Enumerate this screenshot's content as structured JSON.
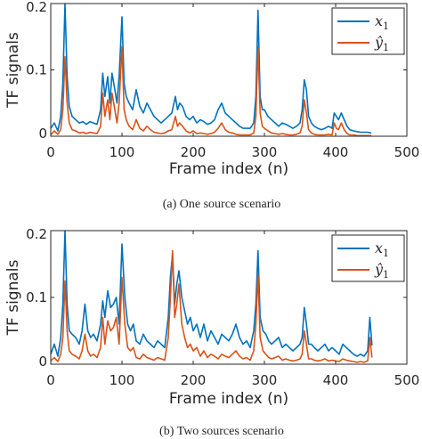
{
  "chart_data": [
    {
      "type": "line",
      "caption": "(a) One source scenario",
      "xlabel": "Frame index (n)",
      "ylabel": "TF signals",
      "xlim": [
        0,
        500
      ],
      "ylim": [
        0,
        0.2
      ],
      "xticks": [
        "0",
        "100",
        "200",
        "300",
        "400",
        "500"
      ],
      "yticks": [
        "0",
        "0.1",
        "0.2"
      ],
      "grid": false,
      "legend_position": "top-right",
      "series": [
        {
          "name": "x1",
          "legend_base": "x",
          "legend_sub": "1",
          "color": "#0072BD",
          "x": [
            0,
            5,
            10,
            14,
            17,
            20,
            23,
            26,
            30,
            35,
            40,
            45,
            50,
            55,
            60,
            65,
            70,
            73,
            76,
            80,
            83,
            86,
            90,
            93,
            96,
            100,
            103,
            106,
            110,
            115,
            120,
            125,
            130,
            135,
            140,
            145,
            150,
            155,
            160,
            165,
            170,
            175,
            178,
            181,
            185,
            190,
            195,
            200,
            205,
            210,
            215,
            220,
            225,
            230,
            235,
            240,
            245,
            250,
            255,
            260,
            265,
            270,
            275,
            280,
            285,
            288,
            291,
            294,
            297,
            300,
            305,
            310,
            315,
            320,
            325,
            330,
            335,
            340,
            345,
            350,
            353,
            356,
            359,
            362,
            366,
            370,
            375,
            380,
            385,
            390,
            395,
            398,
            401,
            404,
            408,
            412,
            416,
            420,
            425,
            430,
            435,
            440,
            445,
            450
          ],
          "y": [
            0.012,
            0.02,
            0.008,
            0.03,
            0.08,
            0.2,
            0.09,
            0.045,
            0.03,
            0.025,
            0.02,
            0.022,
            0.018,
            0.022,
            0.02,
            0.018,
            0.04,
            0.095,
            0.06,
            0.09,
            0.05,
            0.095,
            0.07,
            0.05,
            0.09,
            0.18,
            0.08,
            0.06,
            0.05,
            0.04,
            0.07,
            0.045,
            0.035,
            0.05,
            0.04,
            0.03,
            0.025,
            0.02,
            0.025,
            0.03,
            0.035,
            0.06,
            0.04,
            0.05,
            0.045,
            0.03,
            0.025,
            0.03,
            0.02,
            0.025,
            0.022,
            0.018,
            0.02,
            0.025,
            0.04,
            0.05,
            0.035,
            0.03,
            0.025,
            0.02,
            0.015,
            0.012,
            0.012,
            0.012,
            0.02,
            0.06,
            0.19,
            0.06,
            0.04,
            0.04,
            0.03,
            0.025,
            0.02,
            0.015,
            0.02,
            0.018,
            0.015,
            0.012,
            0.015,
            0.02,
            0.04,
            0.085,
            0.07,
            0.03,
            0.02,
            0.015,
            0.012,
            0.01,
            0.012,
            0.015,
            0.012,
            0.035,
            0.03,
            0.025,
            0.035,
            0.025,
            0.015,
            0.01,
            0.008,
            0.007,
            0.006,
            0.006,
            0.006,
            0.005
          ]
        },
        {
          "name": "ŷ1",
          "legend_base": "ŷ",
          "legend_sub": "1",
          "color": "#D95319",
          "x": [
            0,
            5,
            10,
            14,
            17,
            20,
            23,
            26,
            30,
            35,
            40,
            45,
            50,
            55,
            60,
            65,
            70,
            73,
            76,
            80,
            83,
            86,
            90,
            93,
            96,
            100,
            103,
            106,
            110,
            115,
            120,
            125,
            130,
            135,
            140,
            145,
            150,
            155,
            160,
            165,
            170,
            175,
            178,
            181,
            185,
            190,
            195,
            200,
            205,
            210,
            215,
            220,
            225,
            230,
            235,
            240,
            245,
            250,
            255,
            260,
            265,
            270,
            275,
            280,
            285,
            288,
            291,
            294,
            297,
            300,
            305,
            310,
            315,
            320,
            325,
            330,
            335,
            340,
            345,
            350,
            353,
            356,
            359,
            362,
            366,
            370,
            375,
            380,
            385,
            390,
            395,
            398,
            401,
            404,
            408,
            412,
            416,
            420,
            425,
            430,
            435,
            440,
            445,
            450
          ],
          "y": [
            0.002,
            0.008,
            0.003,
            0.01,
            0.04,
            0.12,
            0.05,
            0.02,
            0.01,
            0.008,
            0.005,
            0.006,
            0.004,
            0.006,
            0.005,
            0.004,
            0.015,
            0.065,
            0.03,
            0.055,
            0.025,
            0.065,
            0.04,
            0.02,
            0.05,
            0.135,
            0.04,
            0.025,
            0.015,
            0.01,
            0.025,
            0.012,
            0.008,
            0.015,
            0.01,
            0.006,
            0.005,
            0.004,
            0.005,
            0.008,
            0.01,
            0.03,
            0.015,
            0.02,
            0.015,
            0.008,
            0.005,
            0.008,
            0.004,
            0.005,
            0.004,
            0.003,
            0.004,
            0.006,
            0.012,
            0.02,
            0.01,
            0.006,
            0.005,
            0.003,
            0.002,
            0.002,
            0.002,
            0.002,
            0.005,
            0.03,
            0.135,
            0.035,
            0.015,
            0.012,
            0.008,
            0.005,
            0.004,
            0.003,
            0.004,
            0.003,
            0.002,
            0.002,
            0.003,
            0.005,
            0.015,
            0.055,
            0.035,
            0.01,
            0.005,
            0.003,
            0.002,
            0.002,
            0.002,
            0.003,
            0.002,
            0.02,
            0.012,
            0.01,
            0.02,
            0.01,
            0.004,
            0.002,
            0.002,
            0.001,
            0.001,
            0.001,
            0.001,
            0.001
          ]
        }
      ]
    },
    {
      "type": "line",
      "caption": "(b) Two sources scenario",
      "xlabel": "Frame index (n)",
      "ylabel": "TF signals",
      "xlim": [
        0,
        500
      ],
      "ylim": [
        0,
        0.2
      ],
      "xticks": [
        "0",
        "100",
        "200",
        "300",
        "400",
        "500"
      ],
      "yticks": [
        "0",
        "0.1",
        "0.2"
      ],
      "grid": false,
      "legend_position": "top-right",
      "series": [
        {
          "name": "x1",
          "legend_base": "x",
          "legend_sub": "1",
          "color": "#0072BD",
          "x": [
            0,
            5,
            10,
            14,
            17,
            20,
            23,
            26,
            30,
            35,
            40,
            44,
            48,
            52,
            56,
            60,
            65,
            70,
            73,
            76,
            80,
            84,
            88,
            92,
            96,
            100,
            104,
            108,
            112,
            116,
            120,
            125,
            130,
            135,
            140,
            145,
            150,
            155,
            160,
            165,
            168,
            171,
            174,
            177,
            180,
            184,
            188,
            192,
            196,
            200,
            205,
            210,
            215,
            220,
            225,
            230,
            235,
            240,
            245,
            250,
            255,
            260,
            265,
            270,
            275,
            280,
            285,
            288,
            291,
            294,
            298,
            302,
            306,
            310,
            315,
            320,
            325,
            330,
            335,
            340,
            345,
            350,
            353,
            356,
            359,
            362,
            366,
            370,
            375,
            380,
            385,
            390,
            395,
            400,
            405,
            410,
            415,
            420,
            425,
            430,
            435,
            440,
            445,
            448,
            451
          ],
          "y": [
            0.015,
            0.03,
            0.012,
            0.04,
            0.09,
            0.2,
            0.09,
            0.05,
            0.045,
            0.04,
            0.03,
            0.05,
            0.09,
            0.05,
            0.04,
            0.045,
            0.035,
            0.06,
            0.095,
            0.07,
            0.11,
            0.085,
            0.09,
            0.1,
            0.06,
            0.18,
            0.1,
            0.06,
            0.05,
            0.06,
            0.035,
            0.03,
            0.045,
            0.035,
            0.03,
            0.025,
            0.035,
            0.03,
            0.025,
            0.07,
            0.13,
            0.165,
            0.09,
            0.12,
            0.14,
            0.1,
            0.08,
            0.06,
            0.07,
            0.05,
            0.06,
            0.04,
            0.06,
            0.035,
            0.05,
            0.04,
            0.03,
            0.045,
            0.04,
            0.035,
            0.045,
            0.06,
            0.04,
            0.03,
            0.035,
            0.025,
            0.05,
            0.09,
            0.17,
            0.07,
            0.05,
            0.045,
            0.035,
            0.03,
            0.035,
            0.04,
            0.025,
            0.03,
            0.025,
            0.02,
            0.025,
            0.03,
            0.04,
            0.085,
            0.06,
            0.03,
            0.03,
            0.025,
            0.02,
            0.025,
            0.03,
            0.02,
            0.025,
            0.02,
            0.015,
            0.03,
            0.025,
            0.02,
            0.015,
            0.012,
            0.015,
            0.012,
            0.02,
            0.07,
            0.028
          ]
        },
        {
          "name": "ŷ1",
          "legend_base": "ŷ",
          "legend_sub": "1",
          "color": "#D95319",
          "x": [
            0,
            5,
            10,
            14,
            17,
            20,
            23,
            26,
            30,
            35,
            40,
            44,
            48,
            52,
            56,
            60,
            65,
            70,
            73,
            76,
            80,
            84,
            88,
            92,
            96,
            100,
            104,
            108,
            112,
            116,
            120,
            125,
            130,
            135,
            140,
            145,
            150,
            155,
            160,
            165,
            168,
            171,
            174,
            177,
            180,
            184,
            188,
            192,
            196,
            200,
            205,
            210,
            215,
            220,
            225,
            230,
            235,
            240,
            245,
            250,
            255,
            260,
            265,
            270,
            275,
            280,
            285,
            288,
            291,
            294,
            298,
            302,
            306,
            310,
            315,
            320,
            325,
            330,
            335,
            340,
            345,
            350,
            353,
            356,
            359,
            362,
            366,
            370,
            375,
            380,
            385,
            390,
            395,
            400,
            405,
            410,
            415,
            420,
            425,
            430,
            435,
            440,
            445,
            448,
            451
          ],
          "y": [
            0.005,
            0.01,
            0.004,
            0.015,
            0.04,
            0.125,
            0.05,
            0.02,
            0.015,
            0.012,
            0.008,
            0.02,
            0.045,
            0.02,
            0.012,
            0.015,
            0.01,
            0.025,
            0.07,
            0.03,
            0.065,
            0.05,
            0.055,
            0.07,
            0.03,
            0.13,
            0.06,
            0.025,
            0.02,
            0.025,
            0.01,
            0.008,
            0.015,
            0.01,
            0.008,
            0.006,
            0.01,
            0.008,
            0.006,
            0.04,
            0.1,
            0.17,
            0.07,
            0.09,
            0.12,
            0.06,
            0.04,
            0.025,
            0.03,
            0.02,
            0.025,
            0.012,
            0.02,
            0.01,
            0.015,
            0.012,
            0.008,
            0.015,
            0.012,
            0.01,
            0.015,
            0.02,
            0.012,
            0.008,
            0.01,
            0.006,
            0.02,
            0.06,
            0.135,
            0.04,
            0.02,
            0.015,
            0.01,
            0.008,
            0.01,
            0.012,
            0.006,
            0.008,
            0.006,
            0.005,
            0.006,
            0.008,
            0.015,
            0.05,
            0.03,
            0.008,
            0.008,
            0.006,
            0.005,
            0.006,
            0.008,
            0.005,
            0.006,
            0.005,
            0.004,
            0.008,
            0.006,
            0.005,
            0.004,
            0.003,
            0.004,
            0.003,
            0.005,
            0.04,
            0.01
          ]
        }
      ]
    }
  ]
}
